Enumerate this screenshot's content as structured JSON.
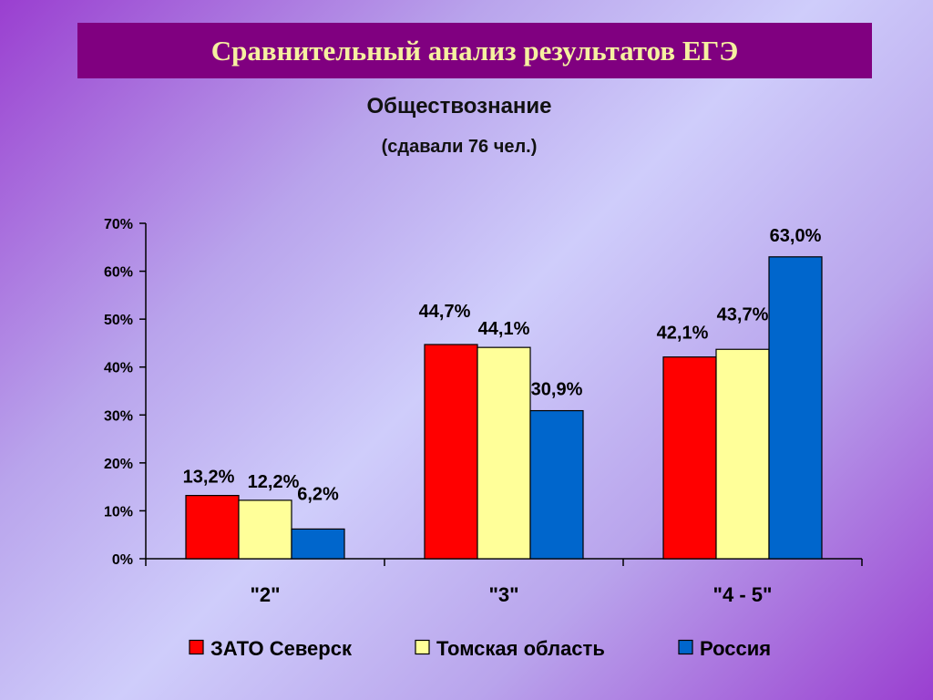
{
  "slide": {
    "title": "Сравнительный анализ результатов ЕГЭ",
    "chart_title": "Обществознание",
    "chart_subtitle": "(сдавали 76 чел.)"
  },
  "chart_data": {
    "type": "bar",
    "title": "Обществознание",
    "subtitle": "(сдавали 76 чел.)",
    "categories": [
      "\"2\"",
      "\"3\"",
      "\"4 - 5\""
    ],
    "series": [
      {
        "name": "ЗАТО Северск",
        "color": "#ff0000",
        "values": [
          13.2,
          44.7,
          42.1
        ],
        "labels": [
          "13,2%",
          "44,7%",
          "42,1%"
        ]
      },
      {
        "name": "Томская область",
        "color": "#ffff99",
        "values": [
          12.2,
          44.1,
          43.7
        ],
        "labels": [
          "12,2%",
          "44,1%",
          "43,7%"
        ]
      },
      {
        "name": "Россия",
        "color": "#0066cc",
        "values": [
          6.2,
          30.9,
          63.0
        ],
        "labels": [
          "6,2%",
          "30,9%",
          "63,0%"
        ]
      }
    ],
    "ylim": [
      0,
      70
    ],
    "yticks": [
      0,
      10,
      20,
      30,
      40,
      50,
      60,
      70
    ],
    "ytick_labels": [
      "0%",
      "10%",
      "20%",
      "30%",
      "40%",
      "50%",
      "60%",
      "70%"
    ],
    "grid": false,
    "legend_position": "bottom"
  }
}
